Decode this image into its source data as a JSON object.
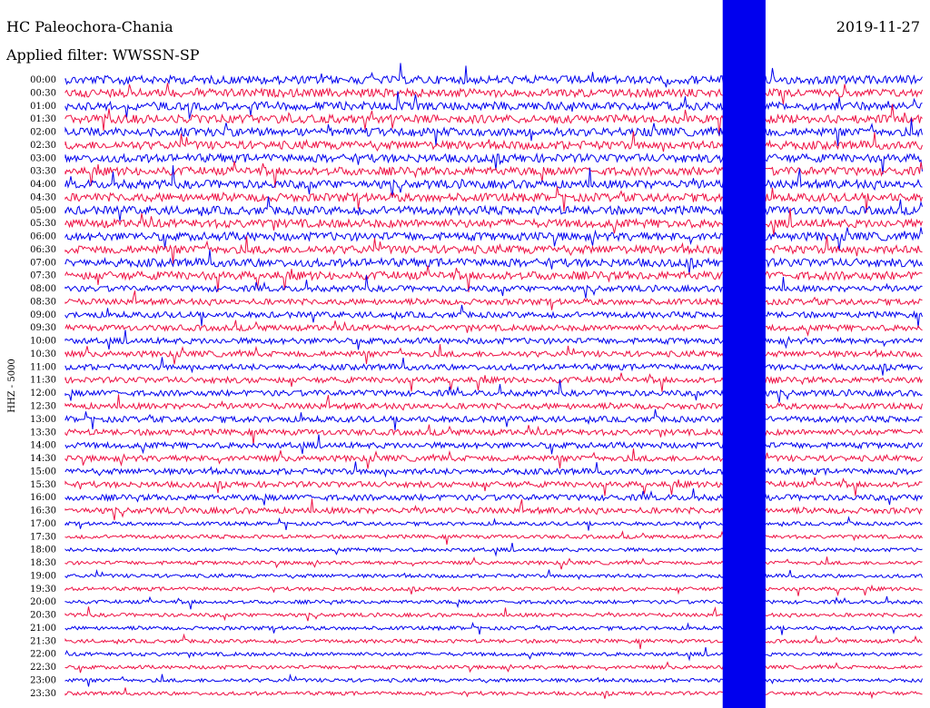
{
  "header": {
    "station": "HC Paleochora-Chania",
    "filter": "Applied filter: WWSSN-SP",
    "date": "2019-11-27"
  },
  "chart_data": {
    "type": "line",
    "title": "HC Paleochora-Chania",
    "subtitle": "Applied filter: WWSSN-SP",
    "date": "2019-11-27",
    "ylabel": "HHZ - 5000",
    "xlabel": "",
    "row_interval_minutes": 30,
    "row_labels": [
      "00:00",
      "00:30",
      "01:00",
      "01:30",
      "02:00",
      "02:30",
      "03:00",
      "03:30",
      "04:00",
      "04:30",
      "05:00",
      "05:30",
      "06:00",
      "06:30",
      "07:00",
      "07:30",
      "08:00",
      "08:30",
      "09:00",
      "09:30",
      "10:00",
      "10:30",
      "11:00",
      "11:30",
      "12:00",
      "12:30",
      "13:00",
      "13:30",
      "14:00",
      "14:30",
      "15:00",
      "15:30",
      "16:00",
      "16:30",
      "17:00",
      "17:30",
      "18:00",
      "18:30",
      "19:00",
      "19:30",
      "20:00",
      "20:30",
      "21:00",
      "21:30",
      "22:00",
      "22:30",
      "23:00",
      "23:30"
    ],
    "trace_colors": [
      "#0000ee",
      "#ee1144"
    ],
    "saturated_event": {
      "start_minute": 23.0,
      "end_minute": 24.5
    },
    "grid": false,
    "legend": "none"
  }
}
